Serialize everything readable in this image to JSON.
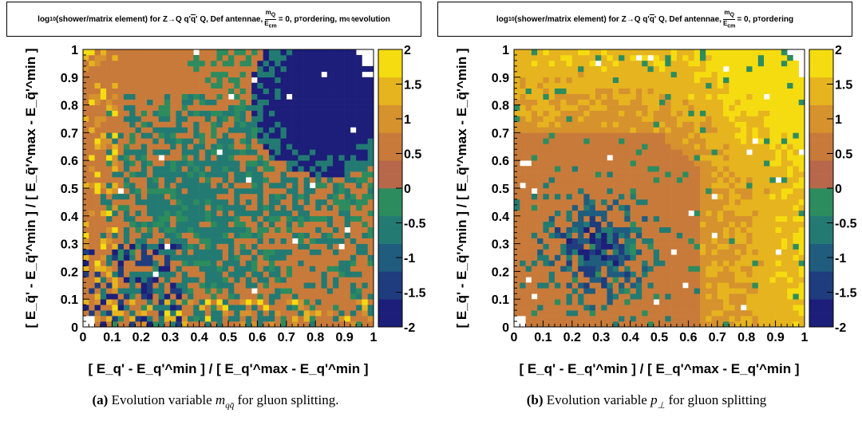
{
  "chart_data": [
    {
      "type": "heatmap",
      "title_parts": {
        "prefix": "log",
        "prefix_sub": "10",
        "text": "(shower/matrix element) for Z",
        "arrow": "→",
        "process": " Q q'",
        "qbar": "q",
        "process_tail": "' Q",
        "tail": ", Def antennae, ",
        "frac_num": "m",
        "frac_num_sub": "Q",
        "frac_den": "E",
        "frac_den_sub": "cm",
        "after_frac": " = 0, p",
        "after_frac_sub": "T",
        "ordering": " ordering, m",
        "ordering_sub": "q q̄",
        "ordering_tail": " evolution"
      },
      "xlabel": "[ E_q' - E_q'^min ] / [ E_q'^max - E_q'^min ]",
      "ylabel": "[ E_q̄' - E_q̄'^min ] / [ E_q̄'^max - E_q̄'^min ]",
      "xlim": [
        0,
        1
      ],
      "ylim": [
        0,
        1
      ],
      "zlim": [
        -2,
        2
      ],
      "xticks": [
        "0",
        "0.1",
        "0.2",
        "0.3",
        "0.4",
        "0.5",
        "0.6",
        "0.7",
        "0.8",
        "0.9",
        "1"
      ],
      "yticks": [
        "0",
        "0.1",
        "0.2",
        "0.3",
        "0.4",
        "0.5",
        "0.6",
        "0.7",
        "0.8",
        "0.9",
        "1"
      ],
      "zticks": [
        "-2",
        "-1.5",
        "-1",
        "-0.5",
        "0",
        "0.5",
        "1",
        "1.5",
        "2"
      ],
      "grid": false,
      "bins": 50,
      "pattern": "Region above diagonal mostly ~0.5 (orange); broad band of ~-0.3 to -0.5 (green) through middle; strong deficit (~-2, dark blue) near upper right (x~0.75-1, y~0.65-1); scattered dark blue near lower-left corner; yellow/orange speckles along low-x/low-y edges; empty bins near corners."
    },
    {
      "type": "heatmap",
      "title_parts": {
        "prefix": "log",
        "prefix_sub": "10",
        "text": "(shower/matrix element) for Z",
        "arrow": "→",
        "process": " Q q'",
        "qbar": "q",
        "process_tail": "' Q",
        "tail": ", Def antennae, ",
        "frac_num": "m",
        "frac_num_sub": "Q",
        "frac_den": "E",
        "frac_den_sub": "cm",
        "after_frac": " = 0, p",
        "after_frac_sub": "T",
        "ordering": " ordering",
        "ordering_sub": "",
        "ordering_tail": ""
      },
      "xlabel": "[ E_q' - E_q'^min ] / [ E_q'^max - E_q'^min ]",
      "ylabel": "[ E_q̄' - E_q̄'^min ] / [ E_q̄'^max - E_q̄'^min ]",
      "xlim": [
        0,
        1
      ],
      "ylim": [
        0,
        1
      ],
      "zlim": [
        -2,
        2
      ],
      "xticks": [
        "0",
        "0.1",
        "0.2",
        "0.3",
        "0.4",
        "0.5",
        "0.6",
        "0.7",
        "0.8",
        "0.9",
        "1"
      ],
      "yticks": [
        "0",
        "0.1",
        "0.2",
        "0.3",
        "0.4",
        "0.5",
        "0.6",
        "0.7",
        "0.8",
        "0.9",
        "1"
      ],
      "zticks": [
        "-2",
        "-1.5",
        "-1",
        "-0.5",
        "0",
        "0.5",
        "1",
        "1.5",
        "2"
      ],
      "grid": false,
      "bins": 50,
      "pattern": "Mostly ~0.5 (orange) across the plane; values rise toward ~2 (yellow) in the upper right (x~0.6-1, y~0.7-1); green/blue cluster (~-0.5 to -2) in lower-left region around x~0.1-0.45, y~0.1-0.45."
    }
  ],
  "captions": [
    {
      "label": "(a)",
      "text_before": " Evolution variable ",
      "math": "m",
      "math_sub": "qq̄",
      "text_after": " for gluon splitting."
    },
    {
      "label": "(b)",
      "text_before": " Evolution variable ",
      "math": "p",
      "math_sub": "⊥",
      "text_after": " for gluon splitting"
    }
  ],
  "colors": {
    "palette": [
      "#1c1e7a",
      "#1f3d7e",
      "#205c7e",
      "#237a73",
      "#2d8c5e",
      "#b8684a",
      "#c87a3a",
      "#d6922d",
      "#e6b41e",
      "#f5dc10",
      "#fdf209"
    ]
  }
}
